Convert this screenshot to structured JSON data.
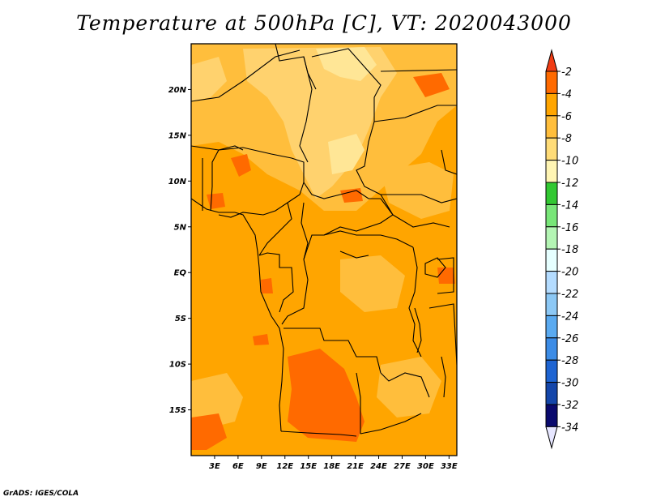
{
  "title": "Temperature at 500hPa [C], VT: 2020043000",
  "credit": "GrADS: IGES/COLA",
  "map": {
    "lat_labels": [
      "20N",
      "15N",
      "10N",
      "5N",
      "EQ",
      "5S",
      "10S",
      "15S"
    ],
    "lat_values": [
      20,
      15,
      10,
      5,
      0,
      -5,
      -10,
      -15
    ],
    "lon_labels": [
      "3E",
      "6E",
      "9E",
      "12E",
      "15E",
      "18E",
      "21E",
      "24E",
      "27E",
      "30E",
      "33E"
    ],
    "lon_values": [
      3,
      6,
      9,
      12,
      15,
      18,
      21,
      24,
      27,
      30,
      33
    ],
    "extent": {
      "lon_min": 0,
      "lon_max": 34,
      "lat_min": -20,
      "lat_max": 25
    },
    "colors": {
      "base": "#ffa500",
      "warm": "#ff6a00",
      "cool_a": "#ffbe3c",
      "cool_b": "#ffd26e",
      "cool_c": "#ffe696",
      "border": "#000000"
    }
  },
  "colorbar": {
    "labels": [
      "-2",
      "-4",
      "-6",
      "-8",
      "-10",
      "-12",
      "-14",
      "-16",
      "-18",
      "-20",
      "-22",
      "-24",
      "-26",
      "-28",
      "-30",
      "-32",
      "-34"
    ],
    "colors": [
      "#f03c14",
      "#ff6a00",
      "#ffa500",
      "#ffbe3c",
      "#ffdc78",
      "#fff5b4",
      "#32c832",
      "#78e678",
      "#b4f5b4",
      "#e6ffff",
      "#b4dcff",
      "#8cc8f5",
      "#5aaaf0",
      "#3c8ce6",
      "#1e64d2",
      "#1446aa",
      "#0a0a6e",
      "#e6e6ff"
    ]
  }
}
